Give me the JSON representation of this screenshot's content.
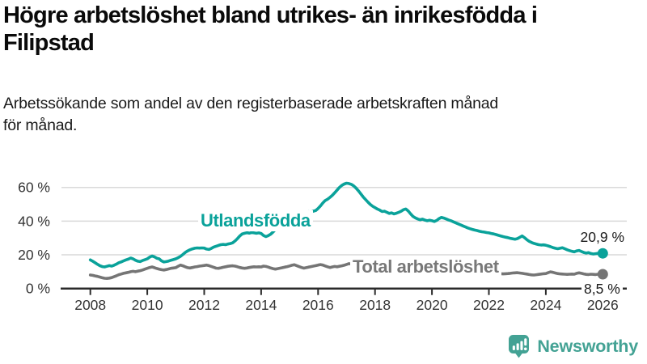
{
  "header": {
    "title_line1": "Högre arbetslöshet bland utrikes- än inrikesfödda i",
    "title_line2": "Filipstad",
    "subtitle_line1": "Arbetssökande som andel av den registerbaserade arbetskraften månad",
    "subtitle_line2": "för månad."
  },
  "branding": {
    "logo_text": "Newsworthy",
    "logo_icon": "bar-chart-speech-bubble-icon",
    "logo_color": "#43a294"
  },
  "chart_data": {
    "type": "line",
    "x_start_year": 2008,
    "x_end_year": 2026,
    "x_unit": "monthly",
    "x_tick_years": [
      2008,
      2010,
      2012,
      2014,
      2016,
      2018,
      2020,
      2022,
      2024,
      2026
    ],
    "y_ticks": [
      {
        "value": 0,
        "label": "0 %"
      },
      {
        "value": 20,
        "label": "20 %"
      },
      {
        "value": 40,
        "label": "40 %"
      },
      {
        "value": 60,
        "label": "60 %"
      }
    ],
    "ylim": [
      0,
      65
    ],
    "grid": "horizontal",
    "axis_color": "#2b2b2b",
    "grid_color": "#d9d9d9",
    "series": [
      {
        "name": "Utlandsfödda",
        "color": "#0aa29a",
        "end_label": "20,9 %",
        "end_value": 20.9,
        "values": [
          17.0,
          16.2,
          15.3,
          14.4,
          13.6,
          13.0,
          12.8,
          13.2,
          13.6,
          13.3,
          13.8,
          14.5,
          15.3,
          15.8,
          16.4,
          17.0,
          17.4,
          18.1,
          17.6,
          16.8,
          16.2,
          16.0,
          16.6,
          17.1,
          17.6,
          18.6,
          19.3,
          18.8,
          18.0,
          17.6,
          16.4,
          15.8,
          16.0,
          16.3,
          16.8,
          17.2,
          17.6,
          18.3,
          19.1,
          20.2,
          21.4,
          22.3,
          23.0,
          23.5,
          23.9,
          24.1,
          24.0,
          24.1,
          24.0,
          23.4,
          23.2,
          23.8,
          24.6,
          25.1,
          25.6,
          26.0,
          26.2,
          26.0,
          26.4,
          26.7,
          27.1,
          28.2,
          29.6,
          31.2,
          32.4,
          32.8,
          33.1,
          32.9,
          33.2,
          33.0,
          32.8,
          33.0,
          32.7,
          31.5,
          30.8,
          31.4,
          32.2,
          33.5,
          35.0,
          36.8,
          38.6,
          40.4,
          42.0,
          43.4,
          44.3,
          44.8,
          45.2,
          44.9,
          45.3,
          45.0,
          44.6,
          45.1,
          45.6,
          45.4,
          45.9,
          46.3,
          47.5,
          49.0,
          50.8,
          52.2,
          53.0,
          54.1,
          55.3,
          56.8,
          58.4,
          60.0,
          61.2,
          62.0,
          62.5,
          62.3,
          61.8,
          60.9,
          59.6,
          58.0,
          56.2,
          54.4,
          52.8,
          51.3,
          49.9,
          48.8,
          48.0,
          47.2,
          46.5,
          45.7,
          45.9,
          45.2,
          44.6,
          44.9,
          44.3,
          44.7,
          45.2,
          45.9,
          46.8,
          47.2,
          46.0,
          44.3,
          42.8,
          41.9,
          41.3,
          40.8,
          41.2,
          40.6,
          40.2,
          40.5,
          40.2,
          39.8,
          40.4,
          41.5,
          42.2,
          41.8,
          41.3,
          40.7,
          40.2,
          39.6,
          39.0,
          38.4,
          37.8,
          37.2,
          36.6,
          36.0,
          35.5,
          35.1,
          34.7,
          34.4,
          34.0,
          33.7,
          33.5,
          33.2,
          33.0,
          32.7,
          32.4,
          32.0,
          31.6,
          31.2,
          30.8,
          30.5,
          30.2,
          29.8,
          29.5,
          29.3,
          29.6,
          30.4,
          31.2,
          30.2,
          29.0,
          28.0,
          27.3,
          26.8,
          26.4,
          26.0,
          25.8,
          25.9,
          25.7,
          25.3,
          24.8,
          24.3,
          23.9,
          23.6,
          23.9,
          24.2,
          23.6,
          23.0,
          22.5,
          22.1,
          21.8,
          22.3,
          22.6,
          22.0,
          21.4,
          21.0,
          21.3,
          20.8,
          20.5,
          20.7,
          20.9,
          20.8,
          20.9
        ]
      },
      {
        "name": "Total arbetslöshet",
        "color": "#757575",
        "end_label": "8,5 %",
        "end_value": 8.5,
        "values": [
          8.0,
          7.8,
          7.5,
          7.2,
          6.8,
          6.4,
          6.1,
          6.0,
          6.2,
          6.5,
          7.0,
          7.6,
          8.2,
          8.6,
          9.0,
          9.3,
          9.6,
          10.0,
          10.2,
          10.0,
          10.3,
          10.6,
          11.0,
          11.5,
          12.0,
          12.5,
          12.8,
          12.4,
          11.9,
          11.5,
          11.2,
          11.0,
          11.3,
          11.6,
          12.0,
          12.2,
          12.4,
          13.2,
          13.9,
          13.5,
          12.9,
          12.4,
          12.2,
          12.5,
          12.8,
          13.0,
          13.3,
          13.5,
          13.7,
          13.9,
          13.6,
          13.1,
          12.6,
          12.1,
          12.0,
          12.3,
          12.6,
          12.9,
          13.2,
          13.4,
          13.5,
          13.3,
          12.9,
          12.5,
          12.2,
          12.0,
          12.2,
          12.5,
          12.7,
          12.9,
          12.8,
          12.9,
          12.8,
          13.3,
          13.1,
          12.7,
          12.2,
          11.8,
          11.5,
          11.8,
          12.1,
          12.4,
          12.7,
          13.0,
          13.4,
          13.8,
          14.1,
          13.6,
          13.0,
          12.5,
          12.1,
          12.4,
          12.7,
          13.0,
          13.3,
          13.6,
          13.9,
          14.2,
          13.9,
          13.4,
          12.9,
          12.5,
          12.8,
          13.1,
          12.9,
          13.2,
          13.5,
          13.8,
          14.3,
          14.8,
          14.5,
          14.0,
          13.6,
          13.2,
          12.9,
          12.7,
          12.4,
          12.2,
          12.0,
          11.9,
          11.8,
          11.6,
          11.3,
          11.0,
          10.7,
          10.4,
          10.2,
          10.1,
          10.0,
          9.9,
          9.8,
          9.9,
          10.0,
          10.1,
          9.9,
          9.7,
          9.5,
          9.4,
          9.3,
          9.2,
          9.3,
          9.4,
          9.5,
          9.7,
          10.0,
          10.2,
          10.8,
          11.4,
          11.8,
          12.0,
          11.9,
          11.7,
          11.4,
          11.1,
          10.8,
          10.6,
          10.4,
          10.2,
          10.0,
          9.8,
          9.6,
          9.4,
          9.2,
          9.1,
          9.0,
          8.9,
          8.9,
          9.0,
          9.1,
          9.2,
          9.1,
          9.0,
          8.9,
          8.8,
          8.7,
          8.8,
          8.9,
          9.0,
          9.2,
          9.3,
          9.4,
          9.2,
          9.0,
          8.8,
          8.6,
          8.3,
          8.1,
          8.0,
          8.2,
          8.4,
          8.6,
          8.8,
          8.9,
          9.4,
          9.9,
          9.6,
          9.2,
          8.9,
          8.7,
          8.6,
          8.5,
          8.4,
          8.5,
          8.6,
          8.5,
          9.0,
          9.3,
          9.0,
          8.7,
          8.4,
          8.3,
          8.5,
          8.4,
          8.3,
          8.5,
          8.6,
          8.5
        ]
      }
    ]
  }
}
